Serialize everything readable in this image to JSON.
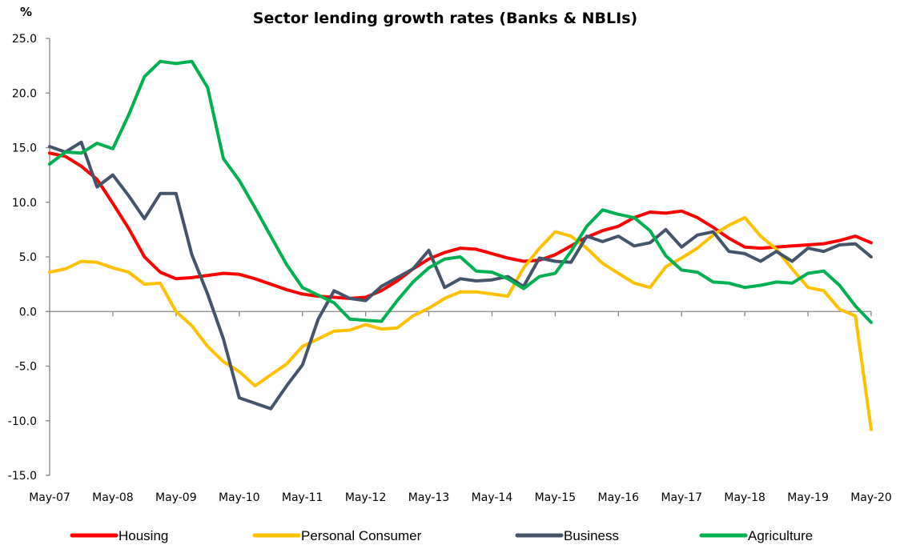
{
  "chart_data": {
    "type": "line",
    "title": "Sector lending growth rates (Banks & NBLIs)",
    "ylabel": "%",
    "xlabel": "",
    "ylim": [
      -15,
      25
    ],
    "yticks": [
      25,
      20,
      15,
      10,
      5,
      0,
      -5,
      -10,
      -15
    ],
    "ytick_labels": [
      "25.0",
      "20.0",
      "15.0",
      "10.0",
      "5.0",
      "0.0",
      "-5.0",
      "-10.0",
      "-15.0"
    ],
    "x_tick_labels": [
      "May-07",
      "May-08",
      "May-09",
      "May-10",
      "May-11",
      "May-12",
      "May-13",
      "May-14",
      "May-15",
      "May-16",
      "May-17",
      "May-18",
      "May-19",
      "May-20"
    ],
    "x_unit": "months since May-07, quarterly samples",
    "x": [
      0,
      3,
      6,
      9,
      12,
      15,
      18,
      21,
      24,
      27,
      30,
      33,
      36,
      39,
      42,
      45,
      48,
      51,
      54,
      57,
      60,
      63,
      66,
      69,
      72,
      75,
      78,
      81,
      84,
      87,
      90,
      93,
      96,
      99,
      102,
      105,
      108,
      111,
      114,
      117,
      120,
      123,
      126,
      129,
      132,
      135,
      138,
      141,
      144,
      147,
      150,
      153,
      156
    ],
    "grid": false,
    "legend_position": "bottom",
    "series": [
      {
        "name": "Housing",
        "color": "#ff0000",
        "values": [
          14.5,
          14.2,
          13.3,
          12.1,
          9.9,
          7.6,
          5.0,
          3.6,
          3.0,
          3.1,
          3.3,
          3.5,
          3.4,
          3.0,
          2.5,
          2.0,
          1.6,
          1.4,
          1.3,
          1.2,
          1.3,
          1.9,
          2.8,
          3.9,
          4.8,
          5.4,
          5.8,
          5.7,
          5.3,
          4.9,
          4.6,
          4.7,
          5.2,
          6.0,
          6.8,
          7.4,
          7.8,
          8.6,
          9.1,
          9.0,
          9.2,
          8.6,
          7.7,
          6.7,
          5.9,
          5.8,
          5.9,
          6.0,
          6.1,
          6.2,
          6.5,
          6.9,
          6.3
        ]
      },
      {
        "name": "Personal Consumer",
        "color": "#ffc000",
        "values": [
          3.6,
          3.9,
          4.6,
          4.5,
          4.0,
          3.6,
          2.5,
          2.6,
          0.0,
          -1.3,
          -3.2,
          -4.6,
          -5.5,
          -6.8,
          -5.8,
          -4.8,
          -3.2,
          -2.5,
          -1.8,
          -1.7,
          -1.2,
          -1.6,
          -1.5,
          -0.4,
          0.3,
          1.2,
          1.8,
          1.8,
          1.6,
          1.4,
          4.0,
          5.8,
          7.3,
          6.9,
          5.8,
          4.4,
          3.5,
          2.6,
          2.2,
          4.1,
          4.9,
          5.8,
          7.0,
          7.9,
          8.6,
          6.9,
          5.7,
          3.9,
          2.2,
          1.9,
          0.2,
          -0.4,
          -10.8
        ]
      },
      {
        "name": "Business",
        "color": "#44546a",
        "values": [
          15.1,
          14.6,
          15.5,
          11.4,
          12.5,
          10.6,
          8.5,
          10.8,
          10.8,
          5.2,
          1.6,
          -2.5,
          -7.9,
          -8.4,
          -8.9,
          -6.8,
          -4.9,
          -0.7,
          1.9,
          1.2,
          1.0,
          2.3,
          3.1,
          3.9,
          5.6,
          2.2,
          3.0,
          2.8,
          2.9,
          3.2,
          2.3,
          4.9,
          4.6,
          4.5,
          6.9,
          6.4,
          6.9,
          6.0,
          6.3,
          7.5,
          5.9,
          7.0,
          7.3,
          5.5,
          5.3,
          4.6,
          5.5,
          4.6,
          5.8,
          5.5,
          6.1,
          6.2,
          5.0
        ]
      },
      {
        "name": "Agriculture",
        "color": "#00b050",
        "values": [
          13.5,
          14.6,
          14.5,
          15.4,
          14.9,
          18.0,
          21.5,
          22.9,
          22.7,
          22.9,
          20.5,
          14.0,
          12.0,
          9.5,
          6.9,
          4.3,
          2.2,
          1.5,
          0.8,
          -0.7,
          -0.8,
          -0.9,
          1.0,
          2.7,
          4.0,
          4.8,
          5.0,
          3.7,
          3.6,
          3.0,
          2.1,
          3.2,
          3.5,
          5.5,
          7.8,
          9.3,
          8.9,
          8.6,
          7.4,
          5.1,
          3.8,
          3.6,
          2.7,
          2.6,
          2.2,
          2.4,
          2.7,
          2.6,
          3.5,
          3.7,
          2.4,
          0.5,
          -1.0
        ]
      }
    ]
  }
}
